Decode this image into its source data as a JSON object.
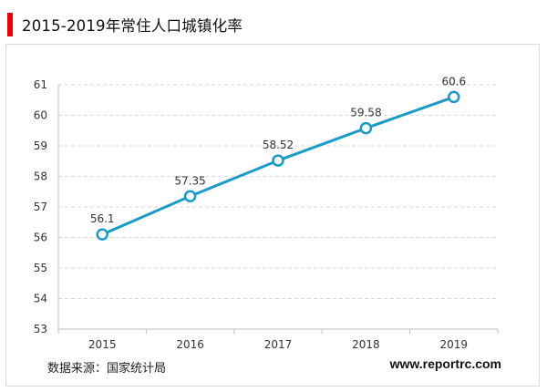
{
  "header": {
    "title": "2015-2019年常住人口城镇化率"
  },
  "footer": {
    "source": "数据来源：国家统计局",
    "website": "www.reportrc.com"
  },
  "colors": {
    "accent": "#e60012",
    "series": "#1a9bc7",
    "grid": "#d9d9d9"
  },
  "chart_data": {
    "type": "line",
    "title": "2015-2019年常住人口城镇化率",
    "xlabel": "",
    "ylabel": "",
    "x": [
      "2015",
      "2016",
      "2017",
      "2018",
      "2019"
    ],
    "series": [
      {
        "values": [
          56.1,
          57.35,
          58.52,
          59.58,
          60.6
        ],
        "labels": [
          "56.1",
          "57.35",
          "58.52",
          "59.58",
          "60.6"
        ]
      }
    ],
    "ylim": [
      53,
      61
    ],
    "yticks": [
      "53",
      "54",
      "55",
      "56",
      "57",
      "58",
      "59",
      "60",
      "61"
    ],
    "grid": true,
    "legend": "none"
  }
}
